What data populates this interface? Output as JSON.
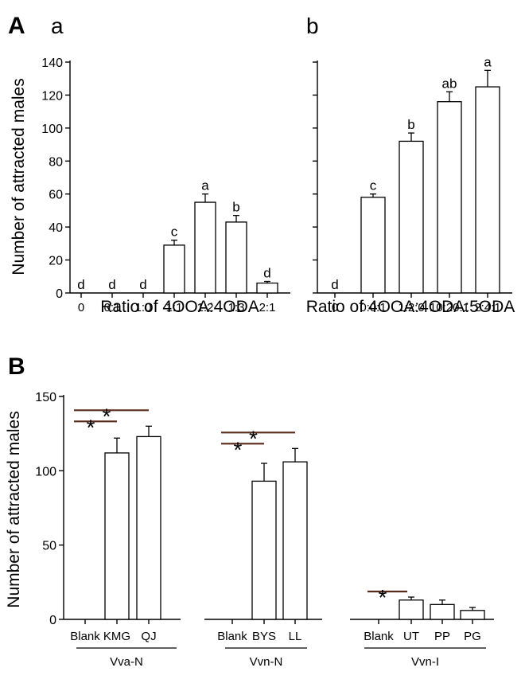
{
  "figure": {
    "panel_A_label": "A",
    "panel_B_label": "B",
    "sub_a_label": "a",
    "sub_b_label": "b"
  },
  "chart_data": [
    {
      "id": "A-a",
      "type": "bar",
      "ylabel": "Number of attracted males",
      "xlabel": "Ratio of 4OOA:4ODA",
      "ylim": [
        0,
        150
      ],
      "yticks": [
        0,
        20,
        40,
        60,
        80,
        100,
        120,
        140
      ],
      "categories": [
        "0",
        "0:1",
        "1:0",
        "1:1",
        "1:2",
        "1:3",
        "2:1"
      ],
      "values": [
        0,
        0,
        0,
        29,
        55,
        43,
        6
      ],
      "errors": [
        0,
        0,
        0,
        3,
        5,
        4,
        1
      ],
      "significance_letters": [
        "d",
        "d",
        "d",
        "c",
        "a",
        "b",
        "d"
      ],
      "grid": false
    },
    {
      "id": "A-b",
      "type": "bar",
      "xlabel": "Ratio of 4OOA:4ODA:5ODA",
      "ylim": [
        0,
        150
      ],
      "categories": [
        "0",
        "0:0:1",
        "1:2:0",
        "10:20:1",
        "2:4:1"
      ],
      "values": [
        0,
        58,
        92,
        116,
        125
      ],
      "errors": [
        0,
        2,
        5,
        6,
        10
      ],
      "significance_letters": [
        "d",
        "c",
        "b",
        "ab",
        "a"
      ],
      "grid": false
    },
    {
      "id": "B",
      "type": "bar",
      "ylabel": "Number of attracted males",
      "ylim": [
        0,
        150
      ],
      "yticks": [
        0,
        50,
        100,
        150
      ],
      "groups": [
        {
          "name": "Vva-N",
          "categories": [
            "Blank",
            "KMG",
            "QJ"
          ],
          "values": [
            0,
            112,
            123
          ],
          "errors": [
            0,
            10,
            7
          ],
          "significance": [
            {
              "from": "Blank",
              "to": "KMG",
              "label": "*"
            },
            {
              "from": "Blank",
              "to": "QJ",
              "label": "*"
            }
          ]
        },
        {
          "name": "Vvn-N",
          "categories": [
            "Blank",
            "BYS",
            "LL"
          ],
          "values": [
            0,
            93,
            106
          ],
          "errors": [
            0,
            12,
            9
          ],
          "significance": [
            {
              "from": "Blank",
              "to": "BYS",
              "label": "*"
            },
            {
              "from": "Blank",
              "to": "LL",
              "label": "*"
            }
          ]
        },
        {
          "name": "Vvn-I",
          "categories": [
            "Blank",
            "UT",
            "PP",
            "PG"
          ],
          "values": [
            0,
            13,
            10,
            6
          ],
          "errors": [
            0,
            2,
            3,
            2
          ],
          "significance": [
            {
              "from": "Blank",
              "to": "UT",
              "label": "*"
            }
          ]
        }
      ],
      "grid": false
    }
  ]
}
